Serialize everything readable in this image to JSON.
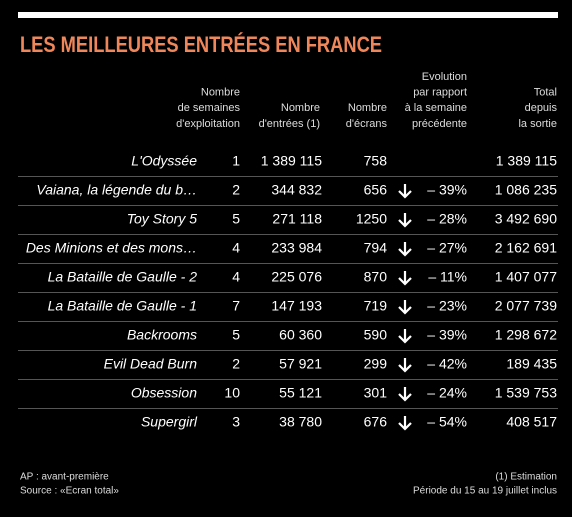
{
  "header": {
    "title": "LES MEILLEURES ENTRÉES EN FRANCE"
  },
  "table": {
    "columns": [
      [
        "Nombre",
        "de semaines",
        "d'exploitation"
      ],
      [
        "Nombre",
        "d'entrées (1)"
      ],
      [
        "Nombre",
        "d'écrans"
      ],
      [
        "Evolution",
        "par rapport",
        "à la semaine",
        "précédente"
      ],
      [
        "Total",
        "depuis",
        "la sortie"
      ]
    ],
    "rows": [
      [
        "L'Odyssée",
        "1",
        "1 389 115",
        "758",
        null,
        "1 389 115"
      ],
      [
        "Vaiana, la légende du b…",
        "2",
        "344 832",
        "656",
        "– 39%",
        "1 086 235"
      ],
      [
        "Toy Story 5",
        "5",
        "271 118",
        "1250",
        "– 28%",
        "3 492 690"
      ],
      [
        "Des Minions et des mons…",
        "4",
        "233 984",
        "794",
        "– 27%",
        "2 162 691"
      ],
      [
        "La Bataille de Gaulle - 2",
        "4",
        "225 076",
        "870",
        "– 11%",
        "1 407 077"
      ],
      [
        "La Bataille de Gaulle - 1",
        "7",
        "147 193",
        "719",
        "– 23%",
        "2 077 739"
      ],
      [
        "Backrooms",
        "5",
        "60 360",
        "590",
        "– 39%",
        "1 298 672"
      ],
      [
        "Evil Dead Burn",
        "2",
        "57 921",
        "299",
        "– 42%",
        "189 435"
      ],
      [
        "Obsession",
        "10",
        "55 121",
        "301",
        "– 24%",
        "1 539 753"
      ],
      [
        "Supergirl",
        "3",
        "38 780",
        "676",
        "– 54%",
        "408 517"
      ]
    ]
  },
  "footer": {
    "left": [
      "AP : avant-première",
      "Source : «Ecran total»"
    ],
    "right": [
      "(1) Estimation",
      "Période du 15 au 19 juillet inclus"
    ]
  }
}
